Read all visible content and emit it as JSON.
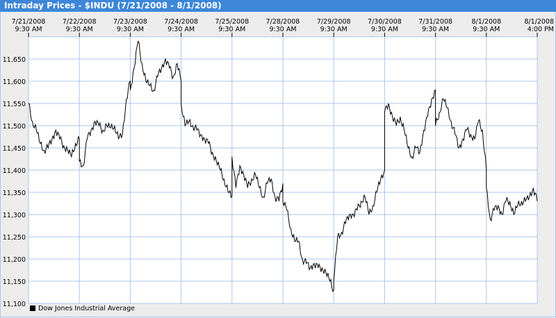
{
  "window_title": "Intraday Prices - $INDU (7/21/2008 - 8/1/2008)",
  "chart_data": {
    "type": "line",
    "title": "Intraday Prices - $INDU (7/21/2008 - 8/1/2008)",
    "x_tick_labels": [
      [
        "7/21/2008",
        "9:30 AM"
      ],
      [
        "7/22/2008",
        "9:30 AM"
      ],
      [
        "7/23/2008",
        "9:30 AM"
      ],
      [
        "7/24/2008",
        "9:30 AM"
      ],
      [
        "7/25/2008",
        "9:30 AM"
      ],
      [
        "7/28/2008",
        "9:30 AM"
      ],
      [
        "7/29/2008",
        "9:30 AM"
      ],
      [
        "7/30/2008",
        "9:30 AM"
      ],
      [
        "7/31/2008",
        "9:30 AM"
      ],
      [
        "8/1/2008",
        "9:30 AM"
      ],
      [
        "8/1/2008",
        "4:00 PM"
      ]
    ],
    "y_tick_labels": [
      "11,100",
      "11,150",
      "11,200",
      "11,250",
      "11,300",
      "11,350",
      "11,400",
      "11,450",
      "11,500",
      "11,550",
      "11,600",
      "11,650"
    ],
    "ylim": [
      11100,
      11700
    ],
    "grid": true,
    "legend_position": "bottom-left",
    "sample_times": [
      "9:30",
      "10:00",
      "10:30",
      "11:00",
      "11:30",
      "12:00",
      "12:30",
      "13:00",
      "13:30",
      "14:00",
      "14:30",
      "15:00",
      "15:30",
      "16:00"
    ],
    "series": [
      {
        "name": "Dow Jones Industrial Average",
        "color": "#000000",
        "days": [
          {
            "date": "7/21/2008",
            "values": [
              11550,
              11510,
              11490,
              11460,
              11445,
              11450,
              11470,
              11490,
              11470,
              11455,
              11445,
              11430,
              11460,
              11470
            ]
          },
          {
            "date": "7/22/2008",
            "values": [
              11420,
              11410,
              11470,
              11490,
              11510,
              11500,
              11490,
              11500,
              11495,
              11500,
              11470,
              11480,
              11560,
              11600
            ]
          },
          {
            "date": "7/23/2008",
            "values": [
              11580,
              11630,
              11690,
              11640,
              11600,
              11590,
              11580,
              11610,
              11630,
              11650,
              11630,
              11610,
              11640,
              11600
            ]
          },
          {
            "date": "7/24/2008",
            "values": [
              11550,
              11500,
              11510,
              11500,
              11490,
              11480,
              11470,
              11460,
              11440,
              11420,
              11400,
              11380,
              11350,
              11340
            ]
          },
          {
            "date": "7/25/2008",
            "values": [
              11430,
              11360,
              11410,
              11390,
              11360,
              11380,
              11390,
              11360,
              11340,
              11370,
              11380,
              11340,
              11330,
              11370
            ]
          },
          {
            "date": "7/28/2008",
            "values": [
              11330,
              11310,
              11270,
              11240,
              11240,
              11200,
              11190,
              11180,
              11190,
              11180,
              11180,
              11170,
              11150,
              11130
            ]
          },
          {
            "date": "7/29/2008",
            "values": [
              11150,
              11250,
              11260,
              11280,
              11300,
              11300,
              11310,
              11330,
              11340,
              11300,
              11320,
              11350,
              11380,
              11400
            ]
          },
          {
            "date": "7/30/2008",
            "values": [
              11530,
              11550,
              11520,
              11500,
              11520,
              11490,
              11450,
              11430,
              11450,
              11440,
              11490,
              11520,
              11560,
              11580
            ]
          },
          {
            "date": "7/31/2008",
            "values": [
              11500,
              11530,
              11560,
              11540,
              11510,
              11480,
              11450,
              11470,
              11490,
              11480,
              11470,
              11510,
              11490,
              11400
            ]
          },
          {
            "date": "8/1/2008",
            "values": [
              11360,
              11290,
              11310,
              11320,
              11300,
              11330,
              11330,
              11300,
              11320,
              11330,
              11330,
              11340,
              11360,
              11330
            ]
          }
        ]
      }
    ],
    "colors": {
      "title_bar": "#3d87d8",
      "grid": "#a9c6ec",
      "background": "#ececec",
      "plot": "#ffffff"
    }
  }
}
